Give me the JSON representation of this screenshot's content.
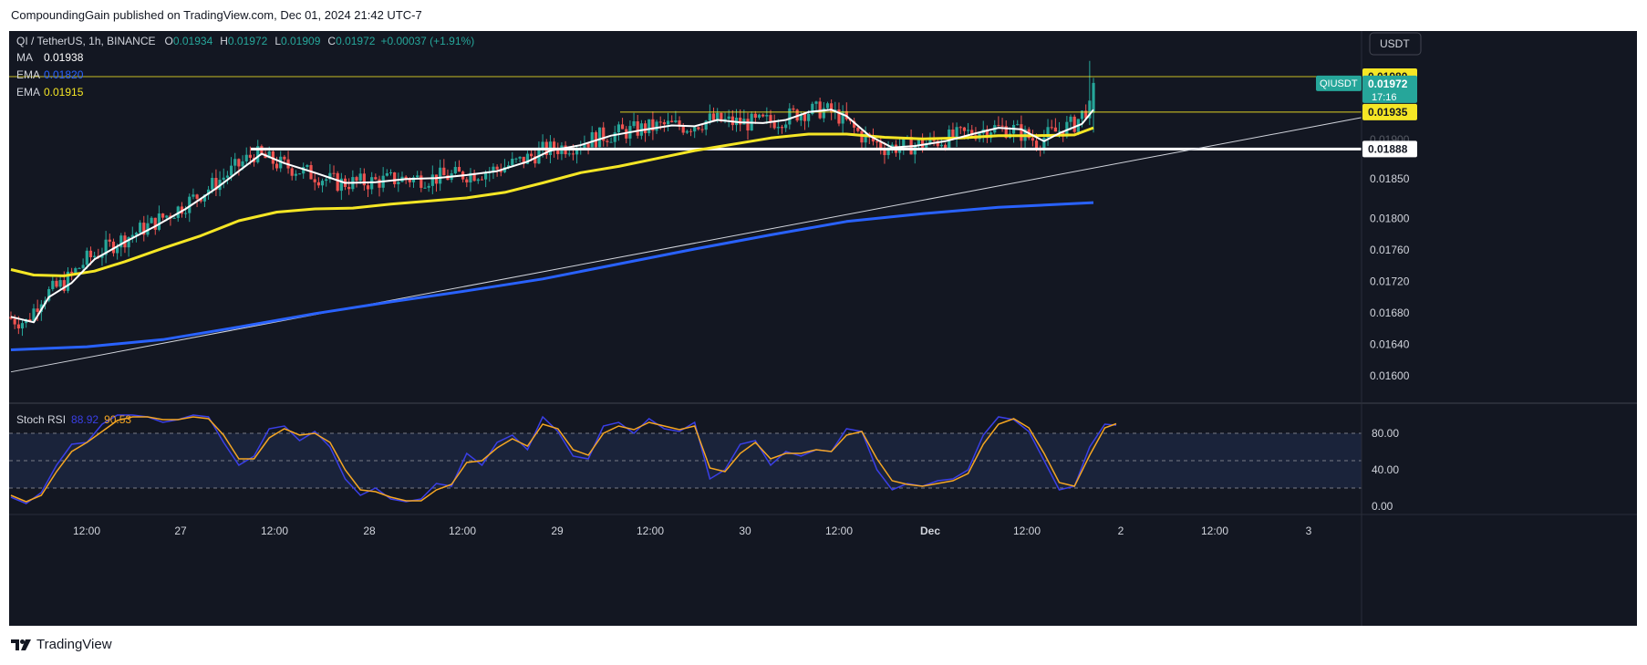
{
  "publisher": "CompoundingGain published on TradingView.com, Dec 01, 2024 21:42 UTC-7",
  "brand": "TradingView",
  "currency": "USDT",
  "symbol_line": {
    "name": "QI / TetherUS, 1h, BINANCE",
    "o_label": "O",
    "o": "0.01934",
    "h_label": "H",
    "h": "0.01972",
    "l_label": "L",
    "l": "0.01909",
    "c_label": "C",
    "c": "0.01972",
    "change": "+0.00037 (+1.91%)"
  },
  "indicators": [
    {
      "name": "MA",
      "value": "0.01938",
      "color": "#ffffff"
    },
    {
      "name": "EMA",
      "value": "0.01820",
      "color": "#2962ff"
    },
    {
      "name": "EMA",
      "value": "0.01915",
      "color": "#f5e625"
    }
  ],
  "price_labels": {
    "level_high": "0.01980",
    "ticker": "QIUSDT",
    "last_price": "0.01972",
    "countdown": "17:16",
    "level_mid": "0.01935",
    "level_support": "0.01888"
  },
  "price_axis_ticks": [
    "0.01850",
    "0.01800",
    "0.01760",
    "0.01720",
    "0.01680",
    "0.01640",
    "0.01600"
  ],
  "stoch": {
    "name": "Stoch RSI",
    "k": "88.92",
    "d": "90.53",
    "k_color": "#3a3fe6",
    "d_color": "#f5a623",
    "ticks": [
      "80.00",
      "40.00",
      "0.00"
    ]
  },
  "time_labels": [
    "12:00",
    "27",
    "12:00",
    "28",
    "12:00",
    "29",
    "12:00",
    "30",
    "12:00",
    "Dec",
    "12:00",
    "2",
    "12:00",
    "3"
  ],
  "colors": {
    "up": "#26a69a",
    "down": "#ef5350",
    "bg": "#131722",
    "ma": "#ffffff",
    "ema_fast": "#f5e625",
    "ema_slow": "#2962ff",
    "level": "#f5e625"
  },
  "chart_data": {
    "type": "candlestick",
    "symbol": "QI / TetherUS",
    "interval": "1h",
    "exchange": "BINANCE",
    "ohlc_last": {
      "o": 0.01934,
      "h": 0.01972,
      "l": 0.01909,
      "c": 0.01972
    },
    "x_range": [
      "Nov 26 08:00",
      "Dec 03 12:00"
    ],
    "ylim": [
      0.0158,
      0.0201
    ],
    "series": [
      {
        "name": "MA",
        "last": 0.01938,
        "points": [
          [
            0,
            0.01675
          ],
          [
            6,
            0.01668
          ],
          [
            10,
            0.017
          ],
          [
            16,
            0.01718
          ],
          [
            22,
            0.01748
          ],
          [
            30,
            0.0177
          ],
          [
            38,
            0.0179
          ],
          [
            46,
            0.01812
          ],
          [
            54,
            0.01838
          ],
          [
            60,
            0.0186
          ],
          [
            66,
            0.01882
          ],
          [
            72,
            0.0187
          ],
          [
            80,
            0.01858
          ],
          [
            88,
            0.01845
          ],
          [
            96,
            0.01846
          ],
          [
            104,
            0.0185
          ],
          [
            112,
            0.01851
          ],
          [
            120,
            0.01855
          ],
          [
            128,
            0.0186
          ],
          [
            136,
            0.01872
          ],
          [
            142,
            0.01886
          ],
          [
            150,
            0.01893
          ],
          [
            158,
            0.01905
          ],
          [
            166,
            0.01912
          ],
          [
            174,
            0.01918
          ],
          [
            180,
            0.01917
          ],
          [
            186,
            0.01925
          ],
          [
            192,
            0.01922
          ],
          [
            198,
            0.01921
          ],
          [
            204,
            0.01925
          ],
          [
            210,
            0.01935
          ],
          [
            216,
            0.01938
          ],
          [
            220,
            0.0193
          ],
          [
            226,
            0.01905
          ],
          [
            232,
            0.0189
          ],
          [
            238,
            0.01892
          ],
          [
            246,
            0.01898
          ],
          [
            254,
            0.01908
          ],
          [
            260,
            0.01915
          ],
          [
            266,
            0.01913
          ],
          [
            272,
            0.01898
          ],
          [
            276,
            0.01908
          ],
          [
            282,
            0.0192
          ],
          [
            285,
            0.01938
          ]
        ]
      },
      {
        "name": "EMA",
        "last": 0.01915,
        "points": [
          [
            0,
            0.01735
          ],
          [
            6,
            0.01728
          ],
          [
            14,
            0.01727
          ],
          [
            22,
            0.01733
          ],
          [
            30,
            0.01745
          ],
          [
            40,
            0.01762
          ],
          [
            50,
            0.01778
          ],
          [
            60,
            0.01797
          ],
          [
            70,
            0.01808
          ],
          [
            80,
            0.01812
          ],
          [
            90,
            0.01813
          ],
          [
            100,
            0.01818
          ],
          [
            110,
            0.01822
          ],
          [
            120,
            0.01826
          ],
          [
            130,
            0.01833
          ],
          [
            140,
            0.01845
          ],
          [
            150,
            0.01858
          ],
          [
            160,
            0.01866
          ],
          [
            170,
            0.01876
          ],
          [
            180,
            0.01886
          ],
          [
            190,
            0.01894
          ],
          [
            200,
            0.01902
          ],
          [
            210,
            0.01907
          ],
          [
            220,
            0.01907
          ],
          [
            230,
            0.01903
          ],
          [
            240,
            0.01901
          ],
          [
            250,
            0.01902
          ],
          [
            260,
            0.01905
          ],
          [
            270,
            0.01905
          ],
          [
            280,
            0.01906
          ],
          [
            285,
            0.01915
          ]
        ]
      },
      {
        "name": "EMA",
        "last": 0.0182,
        "points": [
          [
            0,
            0.01633
          ],
          [
            20,
            0.01637
          ],
          [
            40,
            0.01646
          ],
          [
            60,
            0.01662
          ],
          [
            80,
            0.01679
          ],
          [
            100,
            0.01694
          ],
          [
            120,
            0.01708
          ],
          [
            140,
            0.01723
          ],
          [
            160,
            0.01742
          ],
          [
            180,
            0.01761
          ],
          [
            200,
            0.01779
          ],
          [
            220,
            0.01796
          ],
          [
            240,
            0.01806
          ],
          [
            260,
            0.01814
          ],
          [
            285,
            0.0182
          ]
        ]
      }
    ],
    "levels": [
      {
        "price": 0.0198,
        "label": "0.01980"
      },
      {
        "price": 0.01935,
        "label": "0.01935"
      },
      {
        "price": 0.01888,
        "label": "0.01888"
      }
    ],
    "trendline": [
      [
        0,
        0.01605
      ],
      [
        285,
        0.01925
      ]
    ],
    "stoch_rsi": {
      "k_last": 88.92,
      "d_last": 90.53,
      "band": [
        20,
        80
      ],
      "ylim": [
        -5,
        105
      ],
      "k": [
        [
          0,
          10
        ],
        [
          4,
          3
        ],
        [
          8,
          15
        ],
        [
          12,
          45
        ],
        [
          16,
          68
        ],
        [
          20,
          70
        ],
        [
          24,
          90
        ],
        [
          28,
          100
        ],
        [
          32,
          100
        ],
        [
          36,
          98
        ],
        [
          40,
          92
        ],
        [
          44,
          95
        ],
        [
          48,
          100
        ],
        [
          52,
          98
        ],
        [
          56,
          70
        ],
        [
          60,
          45
        ],
        [
          64,
          55
        ],
        [
          68,
          85
        ],
        [
          72,
          88
        ],
        [
          76,
          72
        ],
        [
          80,
          82
        ],
        [
          84,
          65
        ],
        [
          88,
          30
        ],
        [
          92,
          12
        ],
        [
          96,
          20
        ],
        [
          100,
          8
        ],
        [
          104,
          5
        ],
        [
          108,
          8
        ],
        [
          112,
          25
        ],
        [
          116,
          22
        ],
        [
          120,
          58
        ],
        [
          124,
          45
        ],
        [
          128,
          70
        ],
        [
          132,
          78
        ],
        [
          136,
          62
        ],
        [
          140,
          98
        ],
        [
          144,
          82
        ],
        [
          148,
          55
        ],
        [
          152,
          52
        ],
        [
          156,
          88
        ],
        [
          160,
          92
        ],
        [
          164,
          80
        ],
        [
          168,
          96
        ],
        [
          172,
          85
        ],
        [
          176,
          82
        ],
        [
          180,
          92
        ],
        [
          184,
          30
        ],
        [
          188,
          40
        ],
        [
          192,
          68
        ],
        [
          196,
          72
        ],
        [
          200,
          45
        ],
        [
          204,
          60
        ],
        [
          208,
          55
        ],
        [
          212,
          62
        ],
        [
          216,
          60
        ],
        [
          220,
          85
        ],
        [
          224,
          82
        ],
        [
          228,
          40
        ],
        [
          232,
          18
        ],
        [
          236,
          25
        ],
        [
          240,
          22
        ],
        [
          244,
          28
        ],
        [
          248,
          30
        ],
        [
          252,
          40
        ],
        [
          256,
          78
        ],
        [
          260,
          98
        ],
        [
          264,
          95
        ],
        [
          268,
          82
        ],
        [
          272,
          50
        ],
        [
          276,
          18
        ],
        [
          280,
          22
        ],
        [
          284,
          65
        ],
        [
          288,
          90
        ],
        [
          291,
          88.92
        ]
      ],
      "d": [
        [
          0,
          12
        ],
        [
          4,
          5
        ],
        [
          8,
          12
        ],
        [
          12,
          38
        ],
        [
          16,
          60
        ],
        [
          20,
          70
        ],
        [
          24,
          82
        ],
        [
          28,
          94
        ],
        [
          32,
          98
        ],
        [
          36,
          98
        ],
        [
          40,
          95
        ],
        [
          44,
          95
        ],
        [
          48,
          98
        ],
        [
          52,
          96
        ],
        [
          56,
          78
        ],
        [
          60,
          52
        ],
        [
          64,
          52
        ],
        [
          68,
          75
        ],
        [
          72,
          85
        ],
        [
          76,
          78
        ],
        [
          80,
          80
        ],
        [
          84,
          70
        ],
        [
          88,
          40
        ],
        [
          92,
          18
        ],
        [
          96,
          16
        ],
        [
          100,
          10
        ],
        [
          104,
          6
        ],
        [
          108,
          6
        ],
        [
          112,
          18
        ],
        [
          116,
          24
        ],
        [
          120,
          48
        ],
        [
          124,
          50
        ],
        [
          128,
          64
        ],
        [
          132,
          74
        ],
        [
          136,
          66
        ],
        [
          140,
          90
        ],
        [
          144,
          85
        ],
        [
          148,
          62
        ],
        [
          152,
          56
        ],
        [
          156,
          80
        ],
        [
          160,
          88
        ],
        [
          164,
          84
        ],
        [
          168,
          92
        ],
        [
          172,
          88
        ],
        [
          176,
          84
        ],
        [
          180,
          88
        ],
        [
          184,
          42
        ],
        [
          188,
          38
        ],
        [
          192,
          58
        ],
        [
          196,
          70
        ],
        [
          200,
          52
        ],
        [
          204,
          58
        ],
        [
          208,
          58
        ],
        [
          212,
          62
        ],
        [
          216,
          60
        ],
        [
          220,
          78
        ],
        [
          224,
          82
        ],
        [
          228,
          52
        ],
        [
          232,
          28
        ],
        [
          236,
          24
        ],
        [
          240,
          22
        ],
        [
          244,
          25
        ],
        [
          248,
          28
        ],
        [
          252,
          36
        ],
        [
          256,
          68
        ],
        [
          260,
          90
        ],
        [
          264,
          96
        ],
        [
          268,
          86
        ],
        [
          272,
          58
        ],
        [
          276,
          26
        ],
        [
          280,
          22
        ],
        [
          284,
          56
        ],
        [
          288,
          86
        ],
        [
          291,
          90.53
        ]
      ]
    }
  }
}
